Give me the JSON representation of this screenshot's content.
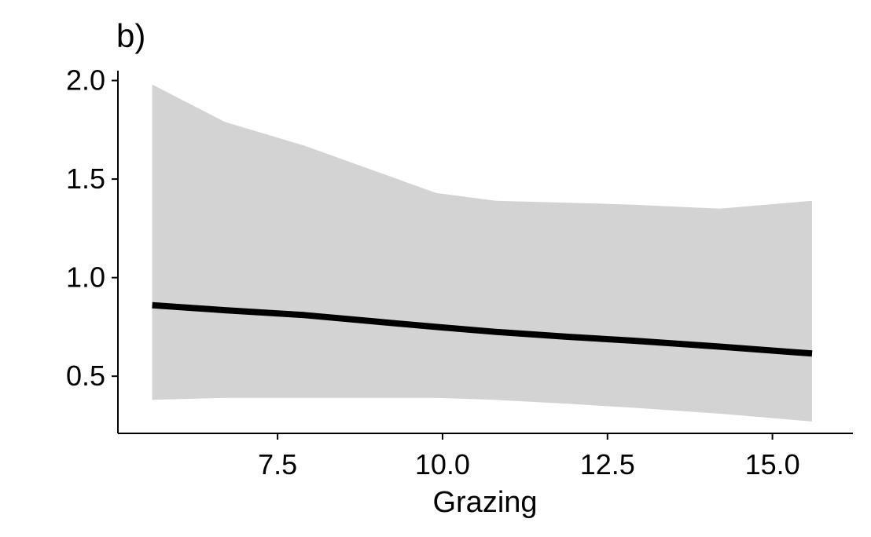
{
  "chart_data": {
    "type": "line",
    "title": "b)",
    "xlabel": "Grazing",
    "ylabel": "",
    "xlim": [
      5.08,
      16.22
    ],
    "ylim": [
      0.21,
      2.05
    ],
    "x_ticks": [
      7.5,
      10.0,
      12.5,
      15.0
    ],
    "x_tick_labels": [
      "7.5",
      "10.0",
      "12.5",
      "15.0"
    ],
    "y_ticks": [
      0.5,
      1.0,
      1.5,
      2.0
    ],
    "y_tick_labels": [
      "0.5",
      "1.0",
      "1.5",
      "2.0"
    ],
    "grid": false,
    "legend": "none",
    "series": [
      {
        "x": [
          5.6,
          6.7,
          7.9,
          8.9,
          9.9,
          10.8,
          11.9,
          12.9,
          14.2,
          15.6
        ],
        "values": [
          0.86,
          0.835,
          0.81,
          0.78,
          0.75,
          0.725,
          0.7,
          0.68,
          0.65,
          0.615
        ],
        "lower": [
          0.38,
          0.39,
          0.39,
          0.39,
          0.39,
          0.38,
          0.36,
          0.34,
          0.31,
          0.27
        ],
        "upper": [
          1.98,
          1.79,
          1.67,
          1.55,
          1.43,
          1.39,
          1.38,
          1.37,
          1.35,
          1.39
        ]
      }
    ],
    "colors": {
      "line": "#000000",
      "band": "#d3d3d3",
      "axis": "#000000"
    }
  }
}
